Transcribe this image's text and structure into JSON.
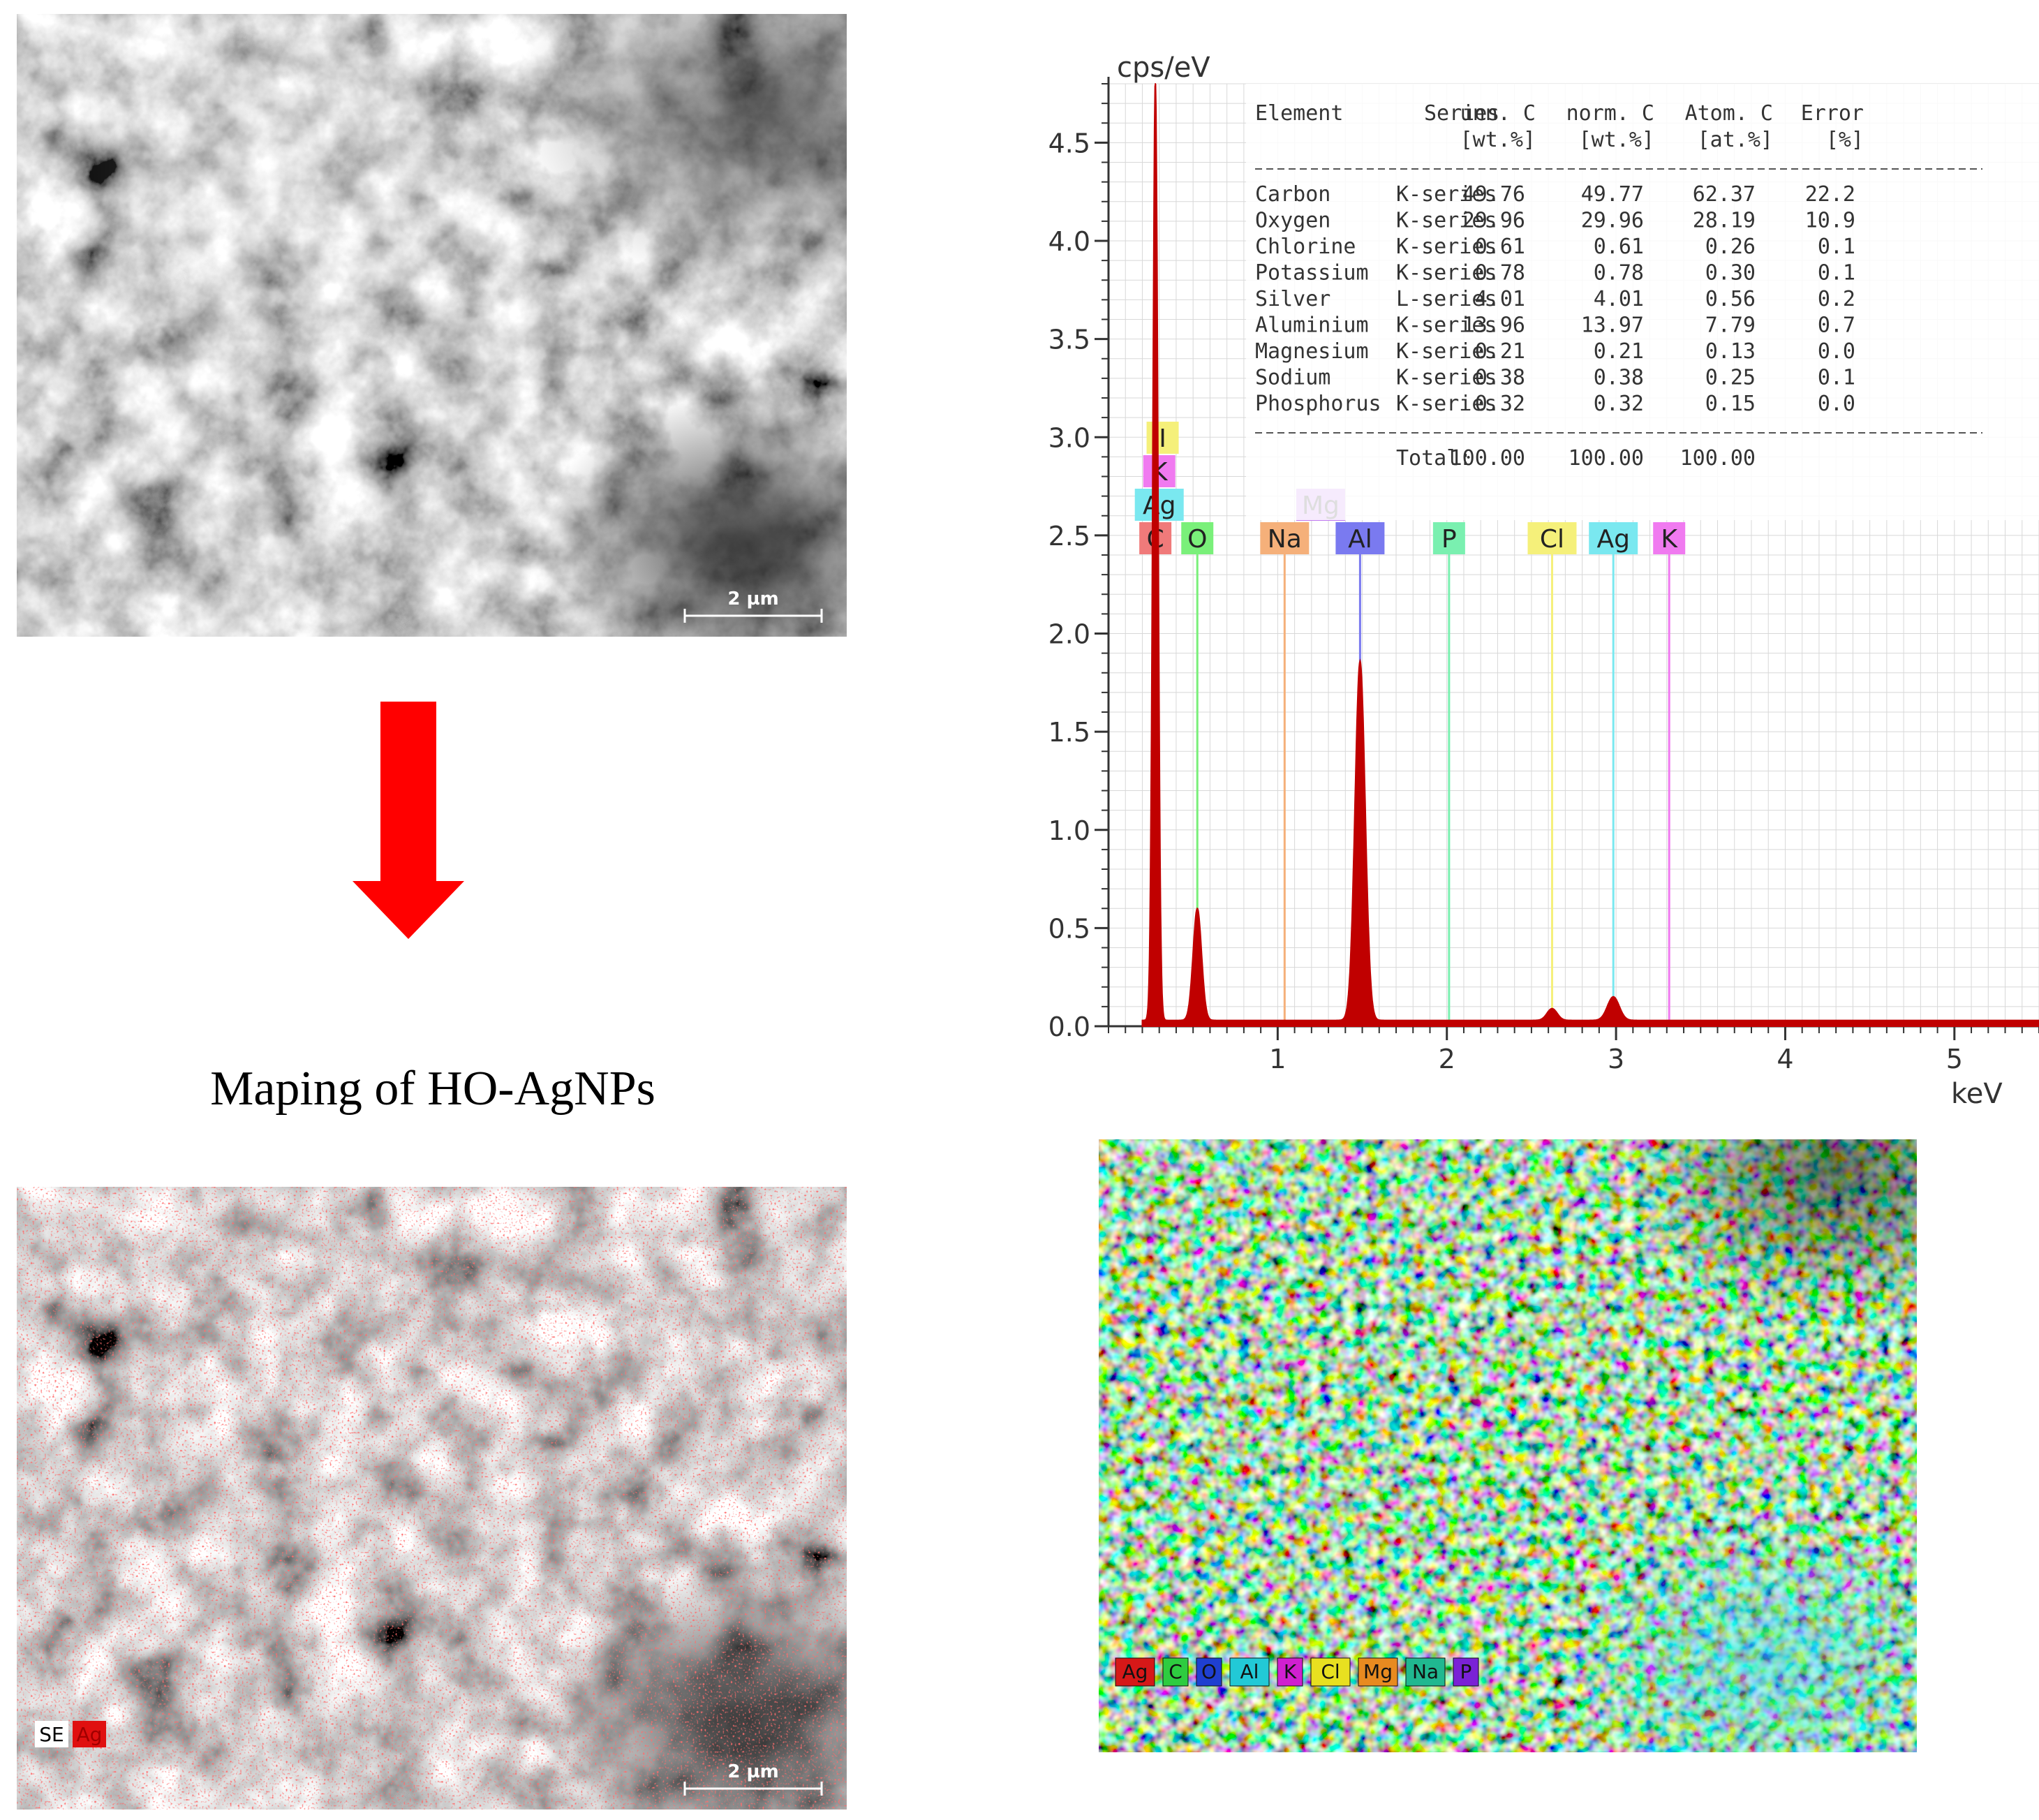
{
  "caption": "Maping of HO-AgNPs",
  "sem_top": {
    "scale_label": "2 µm"
  },
  "sem_bottom": {
    "scale_label": "2 µm",
    "legend": [
      "SE",
      "Ag"
    ]
  },
  "edx_map": {
    "legend": [
      {
        "label": "Ag",
        "color": "#d61818"
      },
      {
        "label": "C",
        "color": "#2ecc40"
      },
      {
        "label": "O",
        "color": "#1f3fd1"
      },
      {
        "label": "Al",
        "color": "#22c9d6"
      },
      {
        "label": "K",
        "color": "#d020d0"
      },
      {
        "label": "Cl",
        "color": "#e8e020"
      },
      {
        "label": "Mg",
        "color": "#e88a20"
      },
      {
        "label": "Na",
        "color": "#20b890"
      },
      {
        "label": "P",
        "color": "#7a22d6"
      }
    ]
  },
  "chart_data": {
    "type": "line",
    "ylabel": "cps/eV",
    "xlabel": "keV",
    "xlim": [
      0,
      5.5
    ],
    "ylim": [
      0,
      4.8
    ],
    "x_ticks": [
      "1",
      "2",
      "3",
      "4",
      "5"
    ],
    "y_ticks": [
      "0.0",
      "0.5",
      "1.0",
      "1.5",
      "2.0",
      "2.5",
      "3.0",
      "3.5",
      "4.0",
      "4.5"
    ],
    "peaks": [
      {
        "element": "C",
        "energy": 0.277,
        "height": 4.8
      },
      {
        "element": "O",
        "energy": 0.525,
        "height": 0.57
      },
      {
        "element": "Al",
        "energy": 1.487,
        "height": 1.83
      },
      {
        "element": "Ag",
        "energy": 2.984,
        "height": 0.12
      },
      {
        "element": "Cl",
        "energy": 2.622,
        "height": 0.06
      }
    ],
    "element_markers": [
      {
        "label": "I",
        "energy": 0.32,
        "color": "#f5f07a",
        "row": 3
      },
      {
        "label": "K",
        "energy": 0.3,
        "color": "#f07af0",
        "row": 2
      },
      {
        "label": "Ag",
        "energy": 0.3,
        "color": "#7ae8f0",
        "row": 1
      },
      {
        "label": "C",
        "energy": 0.277,
        "color": "#f07a7a",
        "row": 0
      },
      {
        "label": "O",
        "energy": 0.525,
        "color": "#7af07a",
        "row": 0
      },
      {
        "label": "Na",
        "energy": 1.041,
        "color": "#f5b07a",
        "row": 0
      },
      {
        "label": "Mg",
        "energy": 1.254,
        "color": "#c07af0",
        "row": 1
      },
      {
        "label": "Al",
        "energy": 1.487,
        "color": "#7a7af0",
        "row": 0
      },
      {
        "label": "P",
        "energy": 2.013,
        "color": "#7af0b0",
        "row": 0
      },
      {
        "label": "Cl",
        "energy": 2.622,
        "color": "#f5f07a",
        "row": 0
      },
      {
        "label": "Ag",
        "energy": 2.984,
        "color": "#7ae8f0",
        "row": 0
      },
      {
        "label": "K",
        "energy": 3.314,
        "color": "#f07af0",
        "row": 0
      }
    ],
    "table": {
      "headers": [
        "Element",
        "Series",
        "unn. C",
        "norm. C",
        "Atom. C",
        "Error"
      ],
      "units": [
        "",
        "",
        "[wt.%]",
        "[wt.%]",
        "[at.%]",
        "[%]"
      ],
      "rows": [
        [
          "Carbon",
          "K-series",
          "49.76",
          "49.77",
          "62.37",
          "22.2"
        ],
        [
          "Oxygen",
          "K-series",
          "29.96",
          "29.96",
          "28.19",
          "10.9"
        ],
        [
          "Chlorine",
          "K-series",
          "0.61",
          "0.61",
          "0.26",
          "0.1"
        ],
        [
          "Potassium",
          "K-series",
          "0.78",
          "0.78",
          "0.30",
          "0.1"
        ],
        [
          "Silver",
          "L-series",
          "4.01",
          "4.01",
          "0.56",
          "0.2"
        ],
        [
          "Aluminium",
          "K-series",
          "13.96",
          "13.97",
          "7.79",
          "0.7"
        ],
        [
          "Magnesium",
          "K-series",
          "0.21",
          "0.21",
          "0.13",
          "0.0"
        ],
        [
          "Sodium",
          "K-series",
          "0.38",
          "0.38",
          "0.25",
          "0.1"
        ],
        [
          "Phosphorus",
          "K-series",
          "0.32",
          "0.32",
          "0.15",
          "0.0"
        ]
      ],
      "total_label": "Total:",
      "totals": [
        "100.00",
        "100.00",
        "100.00"
      ]
    }
  }
}
